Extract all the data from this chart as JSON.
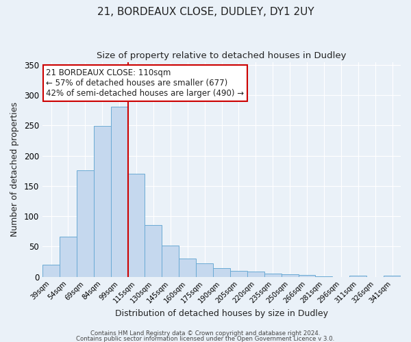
{
  "title_line1": "21, BORDEAUX CLOSE, DUDLEY, DY1 2UY",
  "title_line2": "Size of property relative to detached houses in Dudley",
  "xlabel": "Distribution of detached houses by size in Dudley",
  "ylabel": "Number of detached properties",
  "bar_labels": [
    "39sqm",
    "54sqm",
    "69sqm",
    "84sqm",
    "99sqm",
    "115sqm",
    "130sqm",
    "145sqm",
    "160sqm",
    "175sqm",
    "190sqm",
    "205sqm",
    "220sqm",
    "235sqm",
    "250sqm",
    "266sqm",
    "281sqm",
    "296sqm",
    "311sqm",
    "326sqm",
    "341sqm"
  ],
  "bar_values": [
    20,
    66,
    176,
    249,
    281,
    170,
    85,
    52,
    30,
    22,
    14,
    10,
    8,
    5,
    4,
    3,
    1,
    0,
    2,
    0,
    2
  ],
  "bar_color": "#c5d8ee",
  "bar_edge_color": "#6aaad4",
  "annotation_title": "21 BORDEAUX CLOSE: 110sqm",
  "annotation_line2": "← 57% of detached houses are smaller (677)",
  "annotation_line3": "42% of semi-detached houses are larger (490) →",
  "vline_color": "#cc0000",
  "vline_pos": 4.5,
  "ylim": [
    0,
    355
  ],
  "yticks": [
    0,
    50,
    100,
    150,
    200,
    250,
    300,
    350
  ],
  "annotation_box_edgecolor": "#cc0000",
  "footer_line1": "Contains HM Land Registry data © Crown copyright and database right 2024.",
  "footer_line2": "Contains public sector information licensed under the Open Government Licence v 3.0.",
  "bg_color": "#eaf1f8",
  "grid_color": "#ffffff",
  "text_color": "#222222"
}
